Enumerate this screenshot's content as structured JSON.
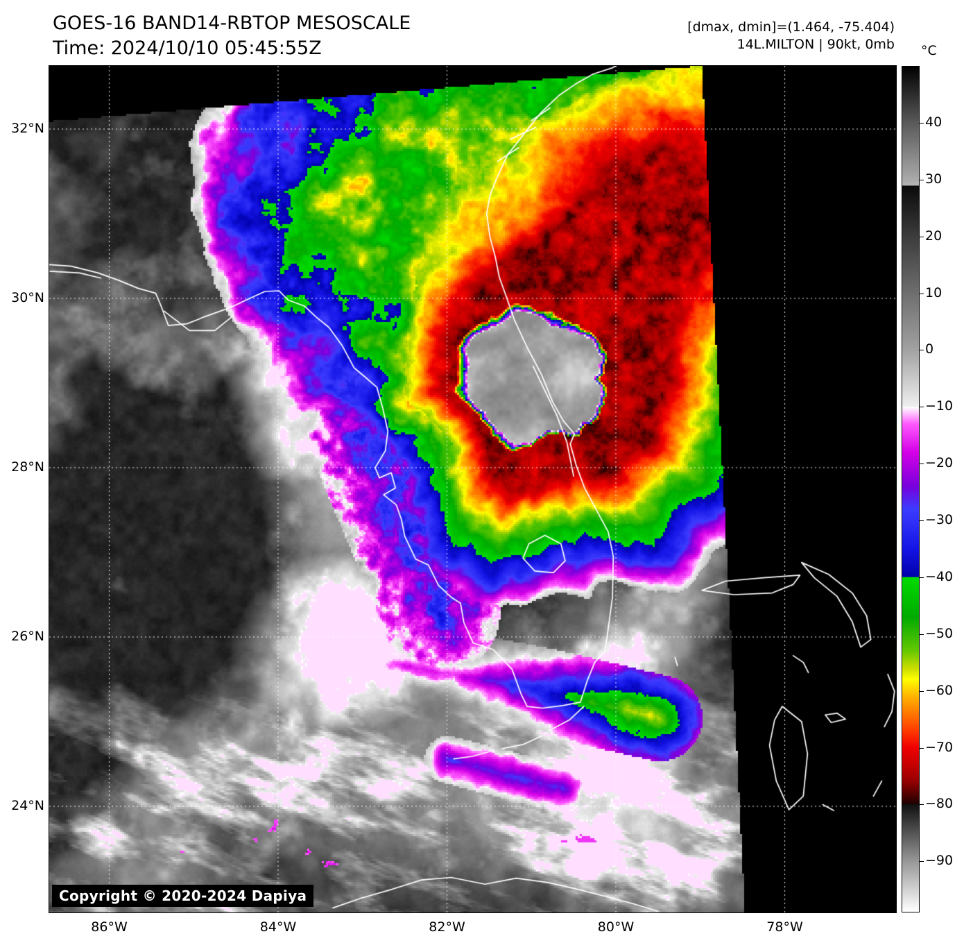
{
  "header": {
    "title": "GOES-16 BAND14-RBTOP MESOSCALE",
    "time_line": "Time: 2024/10/10 05:45:55Z",
    "dmax_dmin_readout": "[dmax, dmin]=(1.464, -75.404)",
    "storm_readout": "14L.MILTON | 90kt, 0mb"
  },
  "colorbar": {
    "unit_label": "°C",
    "value_range": [
      50,
      -99
    ],
    "ticks": [
      {
        "label": "40",
        "value": 40
      },
      {
        "label": "30",
        "value": 30
      },
      {
        "label": "20",
        "value": 20
      },
      {
        "label": "10",
        "value": 10
      },
      {
        "label": "0",
        "value": 0
      },
      {
        "label": "−10",
        "value": -10
      },
      {
        "label": "−20",
        "value": -20
      },
      {
        "label": "−30",
        "value": -30
      },
      {
        "label": "−40",
        "value": -40
      },
      {
        "label": "−50",
        "value": -50
      },
      {
        "label": "−60",
        "value": -60
      },
      {
        "label": "−70",
        "value": -70
      },
      {
        "label": "−80",
        "value": -80
      },
      {
        "label": "−90",
        "value": -90
      }
    ],
    "stops": [
      [
        50,
        "#000000"
      ],
      [
        40,
        "#5a5a5a"
      ],
      [
        30,
        "#aaaaaa"
      ],
      [
        29,
        "#b6b6b6"
      ],
      [
        28.99,
        "#0a0a0a"
      ],
      [
        20,
        "#3c3c3c"
      ],
      [
        10,
        "#6e6e6e"
      ],
      [
        0,
        "#a2a2a2"
      ],
      [
        -10,
        "#f0f0f0"
      ],
      [
        -10.01,
        "#ffffff"
      ],
      [
        -13,
        "#ff5aff"
      ],
      [
        -18,
        "#d400e6"
      ],
      [
        -24,
        "#7800dc"
      ],
      [
        -28,
        "#3c3cff"
      ],
      [
        -35,
        "#1414e6"
      ],
      [
        -40,
        "#0000aa"
      ],
      [
        -40.01,
        "#00dc00"
      ],
      [
        -47,
        "#00aa00"
      ],
      [
        -53,
        "#64c800"
      ],
      [
        -56,
        "#c8dc00"
      ],
      [
        -58,
        "#ffff00"
      ],
      [
        -61,
        "#ffb400"
      ],
      [
        -64,
        "#ff7800"
      ],
      [
        -67,
        "#ff3c00"
      ],
      [
        -70,
        "#f00000"
      ],
      [
        -73,
        "#c80000"
      ],
      [
        -76,
        "#960000"
      ],
      [
        -78,
        "#5a0000"
      ],
      [
        -80,
        "#1e0000"
      ],
      [
        -80.01,
        "#0f0f0f"
      ],
      [
        -90,
        "#969696"
      ],
      [
        -99,
        "#ffffff"
      ]
    ]
  },
  "map": {
    "copyright": "Copyright © 2020-2024 Dapiya",
    "latitude_ticks": [
      {
        "label": "32°N",
        "value": 32
      },
      {
        "label": "30°N",
        "value": 30
      },
      {
        "label": "28°N",
        "value": 28
      },
      {
        "label": "26°N",
        "value": 26
      },
      {
        "label": "24°N",
        "value": 24
      }
    ],
    "longitude_ticks": [
      {
        "label": "86°W",
        "value": -86
      },
      {
        "label": "84°W",
        "value": -84
      },
      {
        "label": "82°W",
        "value": -82
      },
      {
        "label": "80°W",
        "value": -80
      },
      {
        "label": "78°W",
        "value": -78
      }
    ],
    "gridline_color": "#ffffff",
    "coastline_color": "#ffffff",
    "no_data_color": "#000000",
    "storm_center": {
      "lat": 28.9,
      "lon": -80.8,
      "label": "14L.MILTON"
    }
  }
}
